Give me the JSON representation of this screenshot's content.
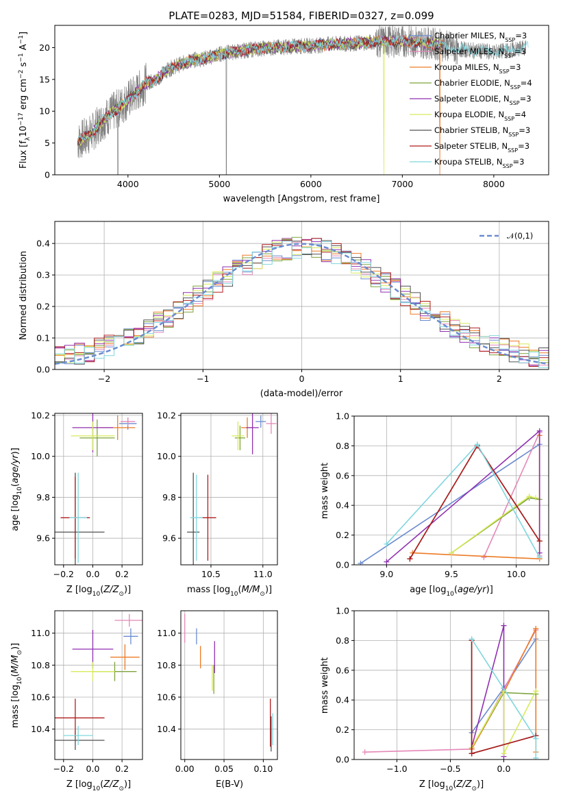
{
  "figure_title": "PLATE=0283, MJD=51584, FIBERID=0327, z=0.099",
  "legend_labels": [
    {
      "name": "Chabrier MILES, N",
      "sub": "SSP",
      "suffix": "=3",
      "color": "#6a8bd0"
    },
    {
      "name": "Salpeter MILES, N",
      "sub": "SSP",
      "suffix": "=3",
      "color": "#e487b7"
    },
    {
      "name": "Kroupa MILES, N",
      "sub": "SSP",
      "suffix": "=3",
      "color": "#ed7a25"
    },
    {
      "name": "Chabrier ELODIE, N",
      "sub": "SSP",
      "suffix": "=4",
      "color": "#7da33a"
    },
    {
      "name": "Salpeter ELODIE, N",
      "sub": "SSP",
      "suffix": "=3",
      "color": "#8f2fb0"
    },
    {
      "name": "Kroupa ELODIE, N",
      "sub": "SSP",
      "suffix": "=4",
      "color": "#d7ea5a"
    },
    {
      "name": "Chabrier STELIB, N",
      "sub": "SSP",
      "suffix": "=3",
      "color": "#505050"
    },
    {
      "name": "Salpeter STELIB, N",
      "sub": "SSP",
      "suffix": "=3",
      "color": "#b01b1b"
    },
    {
      "name": "Kroupa STELIB, N",
      "sub": "SSP",
      "suffix": "=3",
      "color": "#7fd6de"
    }
  ],
  "chart_data": [
    {
      "id": "spectrum",
      "type": "line",
      "xlabel": "wavelength [Angstrom, rest frame]",
      "ylabel": "Flux [f_λ 10^-17 erg cm^-2 s^-1 A^-1]",
      "xlim": [
        3200,
        8600
      ],
      "ylim": [
        0,
        23.5
      ],
      "xticks": [
        4000,
        5000,
        6000,
        7000,
        8000
      ],
      "yticks": [
        0,
        5,
        10,
        15,
        20
      ],
      "grid": false,
      "legend": "top-right",
      "data_color": "#808080",
      "continuum_x": [
        3450,
        3600,
        3700,
        3800,
        3900,
        4000,
        4100,
        4200,
        4300,
        4400,
        4500,
        4600,
        4700,
        4800,
        4900,
        5000,
        5200,
        5400,
        5600,
        5800,
        6000,
        6200,
        6400,
        6600,
        6800,
        7000,
        7200,
        7400,
        7600,
        7800,
        8000,
        8200,
        8350
      ],
      "continuum_y": [
        5.2,
        6.5,
        8.2,
        9.5,
        10.5,
        11.8,
        13.0,
        14.5,
        14.8,
        16.2,
        17.0,
        17.5,
        18.0,
        18.2,
        18.5,
        19.0,
        19.4,
        19.8,
        20.0,
        20.2,
        20.3,
        20.5,
        20.6,
        20.8,
        21.0,
        21.0,
        20.9,
        20.5,
        19.8,
        19.5,
        19.3,
        19.6,
        20.0
      ]
    },
    {
      "id": "residuals",
      "type": "histogram",
      "xlabel": "(data-model)/error",
      "ylabel": "Normed distribution",
      "xlim": [
        -2.5,
        2.5
      ],
      "ylim": [
        0,
        0.47
      ],
      "xticks": [
        -2,
        -1,
        0,
        1,
        2
      ],
      "yticks": [
        0.0,
        0.1,
        0.2,
        0.3,
        0.4
      ],
      "grid": true,
      "legend": "top-right",
      "legend_label": "𝒩(0,1)",
      "bin_width": 0.1,
      "bins_x0": -2.5
    },
    {
      "id": "age_vs_Z",
      "type": "errorbar",
      "xlabel": "Z [log10(Z/Z⊙)]",
      "ylabel": "age [log10(age/yr)]",
      "xlim": [
        -0.26,
        0.34
      ],
      "ylim": [
        9.47,
        10.21
      ],
      "xticks": [
        -0.2,
        0.0,
        0.2
      ],
      "yticks": [
        9.6,
        9.8,
        10.0,
        10.2
      ],
      "grid": true,
      "points": [
        {
          "c": 0,
          "x": 0.24,
          "y": 10.16,
          "xe": 0.06,
          "ye": 0.03
        },
        {
          "c": 1,
          "x": 0.24,
          "y": 10.17,
          "xe": 0.05,
          "ye": 0.02
        },
        {
          "c": 2,
          "x": 0.17,
          "y": 10.14,
          "xe": 0.12,
          "ye": 0.06
        },
        {
          "c": 3,
          "x": 0.03,
          "y": 10.09,
          "xe": 0.12,
          "ye": 0.09
        },
        {
          "c": 4,
          "x": 0.0,
          "y": 10.14,
          "xe": 0.14,
          "ye": 0.12
        },
        {
          "c": 5,
          "x": 0.0,
          "y": 10.1,
          "xe": 0.15,
          "ye": 0.07
        },
        {
          "c": 6,
          "x": -0.12,
          "y": 9.63,
          "xe": 0.2,
          "ye": 0.29
        },
        {
          "c": 7,
          "x": -0.12,
          "y": 9.7,
          "xe": 0.1,
          "ye": 0.2
        },
        {
          "c": 8,
          "x": -0.1,
          "y": 9.7,
          "xe": 0.06,
          "ye": 0.22
        }
      ]
    },
    {
      "id": "age_vs_mass",
      "type": "errorbar",
      "xlabel": "mass [log10(M/M⊙)]",
      "ylabel": "",
      "xlim": [
        10.21,
        11.14
      ],
      "ylim": [
        9.47,
        10.21
      ],
      "xticks": [
        10.5,
        11.0
      ],
      "yticks": [
        9.6,
        9.8,
        10.0,
        10.2
      ],
      "grid": true,
      "points": [
        {
          "c": 0,
          "x": 10.98,
          "y": 10.17,
          "xe": 0.05,
          "ye": 0.03
        },
        {
          "c": 1,
          "x": 11.08,
          "y": 10.16,
          "xe": 0.05,
          "ye": 0.05
        },
        {
          "c": 2,
          "x": 10.85,
          "y": 10.14,
          "xe": 0.06,
          "ye": 0.05
        },
        {
          "c": 3,
          "x": 10.78,
          "y": 10.09,
          "xe": 0.05,
          "ye": 0.06
        },
        {
          "c": 4,
          "x": 10.9,
          "y": 10.14,
          "xe": 0.06,
          "ye": 0.13
        },
        {
          "c": 5,
          "x": 10.76,
          "y": 10.1,
          "xe": 0.06,
          "ye": 0.07
        },
        {
          "c": 6,
          "x": 10.33,
          "y": 9.63,
          "xe": 0.06,
          "ye": 0.29
        },
        {
          "c": 7,
          "x": 10.47,
          "y": 9.7,
          "xe": 0.08,
          "ye": 0.21
        },
        {
          "c": 8,
          "x": 10.36,
          "y": 9.7,
          "xe": 0.06,
          "ye": 0.21
        }
      ]
    },
    {
      "id": "weight_vs_age",
      "type": "line",
      "xlabel": "age [log10(age/yr)]",
      "ylabel": "mass weight",
      "xlim": [
        8.75,
        10.25
      ],
      "ylim": [
        0,
        1.0
      ],
      "xticks": [
        9.0,
        9.5,
        10.0
      ],
      "yticks": [
        0.0,
        0.2,
        0.4,
        0.6,
        0.8,
        1.0
      ],
      "grid": true,
      "series": [
        {
          "c": 0,
          "x": [
            8.8,
            10.18
          ],
          "y": [
            0.01,
            0.81
          ]
        },
        {
          "c": 1,
          "x": [
            9.75,
            10.18,
            10.18
          ],
          "y": [
            0.05,
            0.89,
            0.06
          ]
        },
        {
          "c": 2,
          "x": [
            9.2,
            10.18,
            10.18
          ],
          "y": [
            0.08,
            0.04,
            0.87
          ]
        },
        {
          "c": 3,
          "x": [
            9.5,
            10.1,
            10.18
          ],
          "y": [
            0.08,
            0.45,
            0.44
          ]
        },
        {
          "c": 4,
          "x": [
            9.0,
            10.18,
            10.18
          ],
          "y": [
            0.02,
            0.9,
            0.08
          ]
        },
        {
          "c": 5,
          "x": [
            9.5,
            10.1,
            10.15
          ],
          "y": [
            0.08,
            0.46,
            0.45
          ]
        },
        {
          "c": 6,
          "x": [
            9.18,
            9.7,
            10.18
          ],
          "y": [
            0.04,
            0.8,
            0.16
          ]
        },
        {
          "c": 7,
          "x": [
            9.18,
            9.7,
            10.18
          ],
          "y": [
            0.04,
            0.8,
            0.16
          ]
        },
        {
          "c": 8,
          "x": [
            9.0,
            9.7,
            10.18
          ],
          "y": [
            0.14,
            0.81,
            0.05
          ]
        }
      ]
    },
    {
      "id": "mass_vs_Z",
      "type": "errorbar",
      "xlabel": "Z [log10(Z/Z⊙)]",
      "ylabel": "mass [log10(M/M⊙)]",
      "xlim": [
        -0.26,
        0.34
      ],
      "ylim": [
        10.21,
        11.14
      ],
      "xticks": [
        -0.2,
        0.0,
        0.2
      ],
      "yticks": [
        10.4,
        10.6,
        10.8,
        11.0
      ],
      "grid": true,
      "points": [
        {
          "c": 0,
          "x": 0.26,
          "y": 10.98,
          "xe": 0.05,
          "ye": 0.05
        },
        {
          "c": 1,
          "x": 0.25,
          "y": 11.08,
          "xe": 0.1,
          "ye": 0.04
        },
        {
          "c": 2,
          "x": 0.22,
          "y": 10.85,
          "xe": 0.1,
          "ye": 0.08
        },
        {
          "c": 3,
          "x": 0.15,
          "y": 10.76,
          "xe": 0.15,
          "ye": 0.06
        },
        {
          "c": 4,
          "x": 0.0,
          "y": 10.9,
          "xe": 0.14,
          "ye": 0.12
        },
        {
          "c": 5,
          "x": 0.0,
          "y": 10.76,
          "xe": 0.15,
          "ye": 0.06
        },
        {
          "c": 6,
          "x": -0.12,
          "y": 10.33,
          "xe": 0.2,
          "ye": 0.06
        },
        {
          "c": 7,
          "x": -0.12,
          "y": 10.47,
          "xe": 0.2,
          "ye": 0.12
        },
        {
          "c": 8,
          "x": -0.1,
          "y": 10.36,
          "xe": 0.1,
          "ye": 0.06
        }
      ]
    },
    {
      "id": "mass_vs_ebv",
      "type": "errorbar",
      "xlabel": "E(B-V)",
      "ylabel": "",
      "xlim": [
        -0.005,
        0.118
      ],
      "ylim": [
        10.21,
        11.14
      ],
      "xticks": [
        0.0,
        0.05,
        0.1
      ],
      "yticks": [
        10.4,
        10.6,
        10.8,
        11.0
      ],
      "grid": true,
      "points": [
        {
          "c": 0,
          "x": 0.015,
          "y": 10.98,
          "xe": 0.0,
          "ye": 0.05
        },
        {
          "c": 1,
          "x": 0.0,
          "y": 11.03,
          "xe": 0.0,
          "ye": 0.09
        },
        {
          "c": 2,
          "x": 0.02,
          "y": 10.85,
          "xe": 0.0,
          "ye": 0.07
        },
        {
          "c": 3,
          "x": 0.037,
          "y": 10.71,
          "xe": 0.0,
          "ye": 0.09
        },
        {
          "c": 4,
          "x": 0.038,
          "y": 10.85,
          "xe": 0.0,
          "ye": 0.1
        },
        {
          "c": 5,
          "x": 0.035,
          "y": 10.72,
          "xe": 0.0,
          "ye": 0.08
        },
        {
          "c": 6,
          "x": 0.11,
          "y": 10.37,
          "xe": 0.0,
          "ye": 0.11
        },
        {
          "c": 7,
          "x": 0.109,
          "y": 10.44,
          "xe": 0.0,
          "ye": 0.15
        },
        {
          "c": 8,
          "x": 0.112,
          "y": 10.4,
          "xe": 0.0,
          "ye": 0.1
        }
      ]
    },
    {
      "id": "weight_vs_Z",
      "type": "line",
      "xlabel": "Z [log10(Z/Z⊙)]",
      "ylabel": "mass weight",
      "xlim": [
        -1.4,
        0.42
      ],
      "ylim": [
        0,
        1.0
      ],
      "xticks": [
        -1.0,
        -0.5,
        0.0
      ],
      "yticks": [
        0.0,
        0.2,
        0.4,
        0.6,
        0.8,
        1.0
      ],
      "grid": true,
      "series": [
        {
          "c": 0,
          "x": [
            -0.3,
            0.0,
            0.3
          ],
          "y": [
            0.18,
            0.48,
            0.81
          ]
        },
        {
          "c": 1,
          "x": [
            -1.3,
            -0.3,
            0.3
          ],
          "y": [
            0.05,
            0.07,
            0.87
          ]
        },
        {
          "c": 2,
          "x": [
            -0.3,
            0.0,
            0.3,
            0.3
          ],
          "y": [
            0.07,
            0.45,
            0.88,
            0.05
          ]
        },
        {
          "c": 3,
          "x": [
            -0.3,
            0.0,
            0.3
          ],
          "y": [
            0.08,
            0.45,
            0.44
          ]
        },
        {
          "c": 4,
          "x": [
            -0.3,
            0.0,
            0.0
          ],
          "y": [
            0.08,
            0.9,
            0.02
          ]
        },
        {
          "c": 5,
          "x": [
            -0.3,
            0.0,
            0.0,
            0.3
          ],
          "y": [
            0.08,
            0.46,
            0.04,
            0.46
          ]
        },
        {
          "c": 6,
          "x": [
            -0.3,
            -0.3,
            0.3
          ],
          "y": [
            0.8,
            0.04,
            0.16
          ]
        },
        {
          "c": 7,
          "x": [
            -0.3,
            -0.3,
            0.3
          ],
          "y": [
            0.8,
            0.04,
            0.16
          ]
        },
        {
          "c": 8,
          "x": [
            -0.3,
            0.3,
            0.3
          ],
          "y": [
            0.81,
            0.14,
            0.01
          ]
        }
      ]
    }
  ]
}
